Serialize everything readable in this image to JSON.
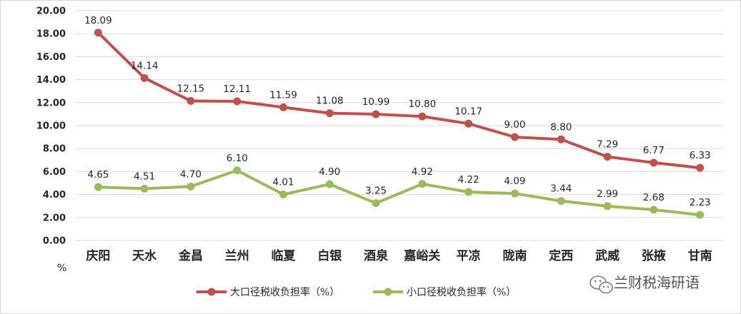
{
  "chart_data": {
    "type": "line",
    "categories": [
      "庆阳",
      "天水",
      "金昌",
      "兰州",
      "临夏",
      "白银",
      "酒泉",
      "嘉峪关",
      "平凉",
      "陇南",
      "定西",
      "武威",
      "张掖",
      "甘南"
    ],
    "series": [
      {
        "name": "大口径税收负担率（%）",
        "color": "#c0504d",
        "values": [
          18.09,
          14.14,
          12.15,
          12.11,
          11.59,
          11.08,
          10.99,
          10.8,
          10.17,
          9.0,
          8.8,
          7.29,
          6.77,
          6.33
        ],
        "labels": [
          "18.09",
          "14.14",
          "12.15",
          "12.11",
          "11.59",
          "11.08",
          "10.99",
          "10.80",
          "10.17",
          "9.00",
          "8.80",
          "7.29",
          "6.77",
          "6.33"
        ]
      },
      {
        "name": "小口径税收负担率（%）",
        "color": "#9bbb59",
        "values": [
          4.65,
          4.51,
          4.7,
          6.1,
          4.01,
          4.9,
          3.25,
          4.92,
          4.22,
          4.09,
          3.44,
          2.99,
          2.68,
          2.23
        ],
        "labels": [
          "4.65",
          "4.51",
          "4.70",
          "6.10",
          "4.01",
          "4.90",
          "3.25",
          "4.92",
          "4.22",
          "4.09",
          "3.44",
          "2.99",
          "2.68",
          "2.23"
        ]
      }
    ],
    "ylim": [
      0,
      20
    ],
    "yticks": [
      "0.00",
      "2.00",
      "4.00",
      "6.00",
      "8.00",
      "10.00",
      "12.00",
      "14.00",
      "16.00",
      "18.00",
      "20.00"
    ],
    "yunit": "%",
    "grid": true,
    "legend": "bottom-center"
  },
  "watermark": {
    "text": "兰财税海研语",
    "icon": "wechat-icon"
  }
}
